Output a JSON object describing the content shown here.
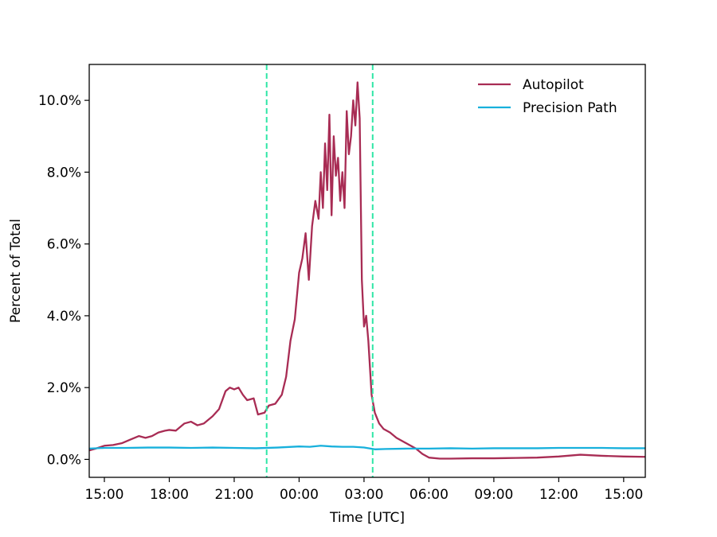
{
  "chart_data": {
    "type": "line",
    "title": "",
    "xlabel": "Time [UTC]",
    "ylabel": "Percent of Total",
    "x_unit": "hours_elapsed_from_14:00",
    "xlim": [
      0.3,
      26.0
    ],
    "ylim": [
      -0.5,
      11.0
    ],
    "x_ticks": [
      {
        "x": 1,
        "label": "15:00"
      },
      {
        "x": 4,
        "label": "18:00"
      },
      {
        "x": 7,
        "label": "21:00"
      },
      {
        "x": 10,
        "label": "00:00"
      },
      {
        "x": 13,
        "label": "03:00"
      },
      {
        "x": 16,
        "label": "06:00"
      },
      {
        "x": 19,
        "label": "09:00"
      },
      {
        "x": 22,
        "label": "12:00"
      },
      {
        "x": 25,
        "label": "15:00"
      }
    ],
    "y_ticks": [
      {
        "y": 0,
        "label": "0.0%"
      },
      {
        "y": 2,
        "label": "2.0%"
      },
      {
        "y": 4,
        "label": "4.0%"
      },
      {
        "y": 6,
        "label": "6.0%"
      },
      {
        "y": 8,
        "label": "8.0%"
      },
      {
        "y": 10,
        "label": "10.0%"
      }
    ],
    "vlines": [
      {
        "x": 8.5,
        "color": "#2ee6a6",
        "style": "dashed"
      },
      {
        "x": 13.4,
        "color": "#2ee6a6",
        "style": "dashed"
      }
    ],
    "legend_position": "top-right",
    "grid": false,
    "series": [
      {
        "name": "Autopilot",
        "color": "#a82c54",
        "points": [
          [
            0.3,
            0.25
          ],
          [
            0.6,
            0.3
          ],
          [
            1.0,
            0.38
          ],
          [
            1.4,
            0.4
          ],
          [
            1.8,
            0.45
          ],
          [
            2.2,
            0.55
          ],
          [
            2.6,
            0.65
          ],
          [
            2.9,
            0.6
          ],
          [
            3.2,
            0.65
          ],
          [
            3.5,
            0.75
          ],
          [
            3.8,
            0.8
          ],
          [
            4.0,
            0.82
          ],
          [
            4.3,
            0.8
          ],
          [
            4.7,
            1.0
          ],
          [
            5.0,
            1.05
          ],
          [
            5.3,
            0.95
          ],
          [
            5.6,
            1.0
          ],
          [
            6.0,
            1.2
          ],
          [
            6.3,
            1.4
          ],
          [
            6.6,
            1.9
          ],
          [
            6.8,
            2.0
          ],
          [
            7.0,
            1.95
          ],
          [
            7.2,
            2.0
          ],
          [
            7.4,
            1.8
          ],
          [
            7.6,
            1.65
          ],
          [
            7.9,
            1.7
          ],
          [
            8.1,
            1.25
          ],
          [
            8.4,
            1.3
          ],
          [
            8.6,
            1.5
          ],
          [
            8.9,
            1.55
          ],
          [
            9.2,
            1.8
          ],
          [
            9.4,
            2.3
          ],
          [
            9.6,
            3.3
          ],
          [
            9.8,
            3.9
          ],
          [
            10.0,
            5.2
          ],
          [
            10.15,
            5.6
          ],
          [
            10.3,
            6.3
          ],
          [
            10.45,
            5.0
          ],
          [
            10.6,
            6.5
          ],
          [
            10.75,
            7.2
          ],
          [
            10.9,
            6.7
          ],
          [
            11.0,
            8.0
          ],
          [
            11.1,
            7.0
          ],
          [
            11.2,
            8.8
          ],
          [
            11.3,
            7.5
          ],
          [
            11.4,
            9.6
          ],
          [
            11.5,
            6.8
          ],
          [
            11.6,
            9.0
          ],
          [
            11.7,
            7.9
          ],
          [
            11.8,
            8.4
          ],
          [
            11.9,
            7.2
          ],
          [
            12.0,
            8.0
          ],
          [
            12.1,
            7.0
          ],
          [
            12.2,
            9.7
          ],
          [
            12.3,
            8.5
          ],
          [
            12.4,
            9.0
          ],
          [
            12.5,
            10.0
          ],
          [
            12.6,
            9.3
          ],
          [
            12.7,
            10.5
          ],
          [
            12.8,
            9.5
          ],
          [
            12.9,
            5.0
          ],
          [
            13.0,
            3.7
          ],
          [
            13.1,
            4.0
          ],
          [
            13.2,
            3.3
          ],
          [
            13.35,
            1.8
          ],
          [
            13.5,
            1.3
          ],
          [
            13.7,
            1.0
          ],
          [
            13.9,
            0.85
          ],
          [
            14.2,
            0.75
          ],
          [
            14.5,
            0.6
          ],
          [
            14.8,
            0.5
          ],
          [
            15.1,
            0.4
          ],
          [
            15.4,
            0.3
          ],
          [
            15.7,
            0.15
          ],
          [
            16.0,
            0.05
          ],
          [
            16.5,
            0.02
          ],
          [
            17.0,
            0.02
          ],
          [
            18.0,
            0.03
          ],
          [
            19.0,
            0.03
          ],
          [
            20.0,
            0.04
          ],
          [
            21.0,
            0.05
          ],
          [
            22.0,
            0.08
          ],
          [
            23.0,
            0.13
          ],
          [
            24.0,
            0.1
          ],
          [
            25.0,
            0.08
          ],
          [
            26.0,
            0.07
          ]
        ]
      },
      {
        "name": "Precision Path",
        "color": "#17b0dc",
        "points": [
          [
            0.3,
            0.3
          ],
          [
            1.0,
            0.32
          ],
          [
            2.0,
            0.32
          ],
          [
            3.0,
            0.33
          ],
          [
            4.0,
            0.33
          ],
          [
            5.0,
            0.32
          ],
          [
            6.0,
            0.33
          ],
          [
            7.0,
            0.32
          ],
          [
            8.0,
            0.31
          ],
          [
            9.0,
            0.33
          ],
          [
            10.0,
            0.36
          ],
          [
            10.5,
            0.35
          ],
          [
            11.0,
            0.38
          ],
          [
            11.5,
            0.36
          ],
          [
            12.0,
            0.35
          ],
          [
            12.5,
            0.35
          ],
          [
            13.0,
            0.33
          ],
          [
            13.5,
            0.28
          ],
          [
            14.0,
            0.29
          ],
          [
            15.0,
            0.3
          ],
          [
            16.0,
            0.3
          ],
          [
            17.0,
            0.31
          ],
          [
            18.0,
            0.3
          ],
          [
            19.0,
            0.31
          ],
          [
            20.0,
            0.31
          ],
          [
            21.0,
            0.31
          ],
          [
            22.0,
            0.32
          ],
          [
            23.0,
            0.32
          ],
          [
            24.0,
            0.32
          ],
          [
            25.0,
            0.31
          ],
          [
            26.0,
            0.31
          ]
        ]
      }
    ]
  }
}
